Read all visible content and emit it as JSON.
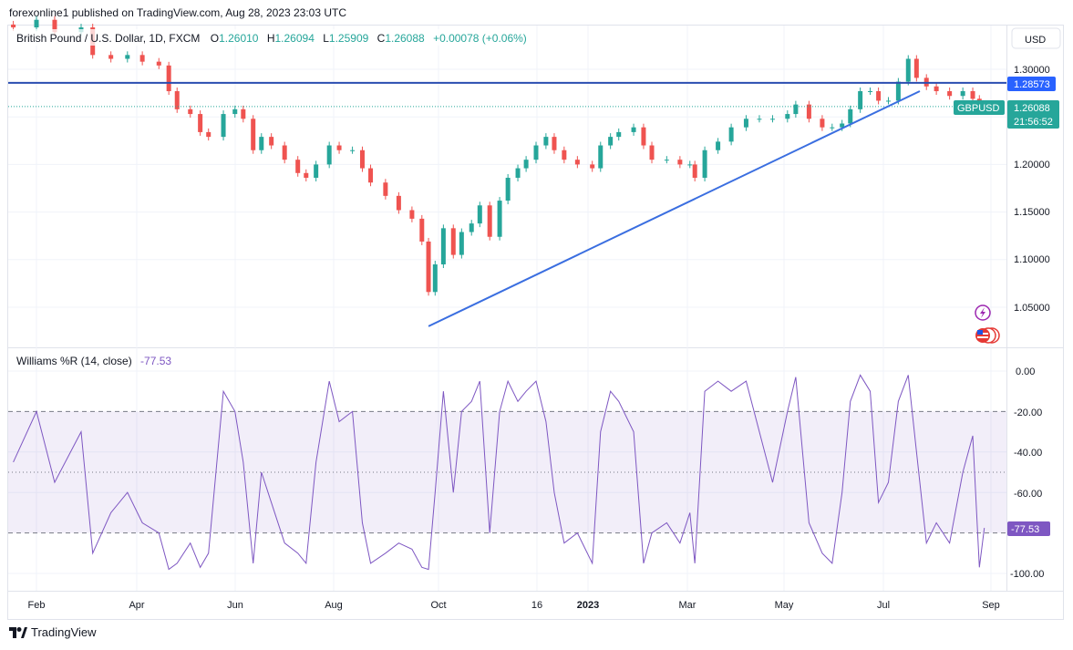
{
  "header": {
    "published": "forexonline1 published on TradingView.com, Aug 28, 2023 23:03 UTC"
  },
  "legend": {
    "symbol": "British Pound / U.S. Dollar, 1D, FXCM",
    "o_label": "O",
    "o": "1.26010",
    "h_label": "H",
    "h": "1.26094",
    "l_label": "L",
    "l": "1.25909",
    "c_label": "C",
    "c": "1.26088",
    "change": "+0.00078 (+0.06%)"
  },
  "price_axis": {
    "currency": "USD",
    "ticks": [
      "1.30000",
      "1.20000",
      "1.15000",
      "1.10000",
      "1.05000"
    ],
    "hline_label": "1.28573",
    "last_price": "1.26088",
    "countdown": "21:56:52",
    "symbol_tag": "GBPUSD"
  },
  "indicator": {
    "title": "Williams %R (14, close)",
    "value": "-77.53",
    "ticks": [
      "0.00",
      "-20.00",
      "-40.00",
      "-60.00",
      "-100.00"
    ],
    "value_tag": "-77.53"
  },
  "time_axis": {
    "labels": [
      "Feb",
      "Apr",
      "Jun",
      "Aug",
      "Oct",
      "16",
      "2023",
      "Mar",
      "May",
      "Jul",
      "Sep"
    ]
  },
  "footer": {
    "brand": "TradingView"
  },
  "colors": {
    "up": "#26a69a",
    "down": "#ef5350",
    "line": "#2962ff",
    "wr": "#7e57c2",
    "trend": "#3a6ee0"
  },
  "icons": [
    "lightning-icon",
    "us-flag-icon",
    "tradingview-logo-icon"
  ],
  "chart_data": {
    "type": "candlestick",
    "title": "British Pound / U.S. Dollar, 1D, FXCM",
    "ylim": [
      1.02,
      1.355
    ],
    "horizontal_line": 1.28573,
    "trend_line": [
      {
        "date": "2022-09-26",
        "price": 1.03
      },
      {
        "date": "2023-07-20",
        "price": 1.277
      }
    ],
    "indicator_ylim": [
      -105,
      5
    ],
    "indicator_levels": [
      -20,
      -50,
      -80
    ],
    "points": [
      {
        "date": "2022-01-18",
        "close": 1.344,
        "wr": -45
      },
      {
        "date": "2022-02-01",
        "close": 1.352,
        "wr": -20
      },
      {
        "date": "2022-02-12",
        "close": 1.339,
        "wr": -55
      },
      {
        "date": "2022-02-28",
        "close": 1.344,
        "wr": -30
      },
      {
        "date": "2022-03-07",
        "close": 1.315,
        "wr": -90
      },
      {
        "date": "2022-03-18",
        "close": 1.311,
        "wr": -70
      },
      {
        "date": "2022-03-28",
        "close": 1.315,
        "wr": -60
      },
      {
        "date": "2022-04-06",
        "close": 1.308,
        "wr": -75
      },
      {
        "date": "2022-04-16",
        "close": 1.304,
        "wr": -80
      },
      {
        "date": "2022-04-22",
        "close": 1.277,
        "wr": -98
      },
      {
        "date": "2022-04-27",
        "close": 1.258,
        "wr": -95
      },
      {
        "date": "2022-05-05",
        "close": 1.253,
        "wr": -85
      },
      {
        "date": "2022-05-11",
        "close": 1.234,
        "wr": -97
      },
      {
        "date": "2022-05-16",
        "close": 1.229,
        "wr": -90
      },
      {
        "date": "2022-05-25",
        "close": 1.253,
        "wr": -10
      },
      {
        "date": "2022-06-01",
        "close": 1.258,
        "wr": -20
      },
      {
        "date": "2022-06-06",
        "close": 1.248,
        "wr": -45
      },
      {
        "date": "2022-06-12",
        "close": 1.215,
        "wr": -95
      },
      {
        "date": "2022-06-17",
        "close": 1.229,
        "wr": -50
      },
      {
        "date": "2022-06-23",
        "close": 1.22,
        "wr": -65
      },
      {
        "date": "2022-07-01",
        "close": 1.205,
        "wr": -85
      },
      {
        "date": "2022-07-09",
        "close": 1.191,
        "wr": -90
      },
      {
        "date": "2022-07-14",
        "close": 1.186,
        "wr": -95
      },
      {
        "date": "2022-07-20",
        "close": 1.2,
        "wr": -45
      },
      {
        "date": "2022-07-28",
        "close": 1.22,
        "wr": -5
      },
      {
        "date": "2022-08-03",
        "close": 1.215,
        "wr": -25
      },
      {
        "date": "2022-08-11",
        "close": 1.215,
        "wr": -20
      },
      {
        "date": "2022-08-17",
        "close": 1.196,
        "wr": -75
      },
      {
        "date": "2022-08-22",
        "close": 1.181,
        "wr": -95
      },
      {
        "date": "2022-08-31",
        "close": 1.167,
        "wr": -90
      },
      {
        "date": "2022-09-08",
        "close": 1.152,
        "wr": -85
      },
      {
        "date": "2022-09-16",
        "close": 1.143,
        "wr": -88
      },
      {
        "date": "2022-09-22",
        "close": 1.119,
        "wr": -97
      },
      {
        "date": "2022-09-26",
        "close": 1.066,
        "wr": -98
      },
      {
        "date": "2022-09-30",
        "close": 1.095,
        "wr": -60
      },
      {
        "date": "2022-10-05",
        "close": 1.133,
        "wr": -10
      },
      {
        "date": "2022-10-11",
        "close": 1.105,
        "wr": -60
      },
      {
        "date": "2022-10-16",
        "close": 1.129,
        "wr": -20
      },
      {
        "date": "2022-10-22",
        "close": 1.138,
        "wr": -15
      },
      {
        "date": "2022-10-27",
        "close": 1.157,
        "wr": -5
      },
      {
        "date": "2022-11-02",
        "close": 1.124,
        "wr": -80
      },
      {
        "date": "2022-11-08",
        "close": 1.162,
        "wr": -20
      },
      {
        "date": "2022-11-13",
        "close": 1.186,
        "wr": -5
      },
      {
        "date": "2022-11-19",
        "close": 1.196,
        "wr": -15
      },
      {
        "date": "2022-11-24",
        "close": 1.205,
        "wr": -10
      },
      {
        "date": "2022-11-30",
        "close": 1.22,
        "wr": -5
      },
      {
        "date": "2022-12-06",
        "close": 1.229,
        "wr": -25
      },
      {
        "date": "2022-12-11",
        "close": 1.215,
        "wr": -60
      },
      {
        "date": "2022-12-17",
        "close": 1.205,
        "wr": -85
      },
      {
        "date": "2022-12-25",
        "close": 1.2,
        "wr": -80
      },
      {
        "date": "2023-01-03",
        "close": 1.196,
        "wr": -95
      },
      {
        "date": "2023-01-08",
        "close": 1.22,
        "wr": -30
      },
      {
        "date": "2023-01-14",
        "close": 1.229,
        "wr": -10
      },
      {
        "date": "2023-01-19",
        "close": 1.234,
        "wr": -15
      },
      {
        "date": "2023-01-28",
        "close": 1.239,
        "wr": -30
      },
      {
        "date": "2023-02-03",
        "close": 1.22,
        "wr": -95
      },
      {
        "date": "2023-02-08",
        "close": 1.205,
        "wr": -80
      },
      {
        "date": "2023-02-17",
        "close": 1.205,
        "wr": -75
      },
      {
        "date": "2023-02-25",
        "close": 1.2,
        "wr": -85
      },
      {
        "date": "2023-03-03",
        "close": 1.2,
        "wr": -70
      },
      {
        "date": "2023-03-06",
        "close": 1.186,
        "wr": -95
      },
      {
        "date": "2023-03-12",
        "close": 1.215,
        "wr": -10
      },
      {
        "date": "2023-03-20",
        "close": 1.224,
        "wr": -5
      },
      {
        "date": "2023-03-28",
        "close": 1.239,
        "wr": -10
      },
      {
        "date": "2023-04-06",
        "close": 1.248,
        "wr": -5
      },
      {
        "date": "2023-04-14",
        "close": 1.248,
        "wr": -30
      },
      {
        "date": "2023-04-22",
        "close": 1.248,
        "wr": -55
      },
      {
        "date": "2023-05-01",
        "close": 1.253,
        "wr": -20
      },
      {
        "date": "2023-05-06",
        "close": 1.263,
        "wr": -3
      },
      {
        "date": "2023-05-14",
        "close": 1.248,
        "wr": -75
      },
      {
        "date": "2023-05-22",
        "close": 1.239,
        "wr": -90
      },
      {
        "date": "2023-05-28",
        "close": 1.239,
        "wr": -95
      },
      {
        "date": "2023-06-03",
        "close": 1.243,
        "wr": -60
      },
      {
        "date": "2023-06-08",
        "close": 1.258,
        "wr": -15
      },
      {
        "date": "2023-06-14",
        "close": 1.277,
        "wr": -2
      },
      {
        "date": "2023-06-20",
        "close": 1.277,
        "wr": -10
      },
      {
        "date": "2023-06-25",
        "close": 1.267,
        "wr": -65
      },
      {
        "date": "2023-07-01",
        "close": 1.267,
        "wr": -55
      },
      {
        "date": "2023-07-07",
        "close": 1.287,
        "wr": -15
      },
      {
        "date": "2023-07-13",
        "close": 1.311,
        "wr": -2
      },
      {
        "date": "2023-07-18",
        "close": 1.291,
        "wr": -40
      },
      {
        "date": "2023-07-24",
        "close": 1.282,
        "wr": -85
      },
      {
        "date": "2023-07-30",
        "close": 1.277,
        "wr": -75
      },
      {
        "date": "2023-08-07",
        "close": 1.272,
        "wr": -85
      },
      {
        "date": "2023-08-15",
        "close": 1.277,
        "wr": -50
      },
      {
        "date": "2023-08-21",
        "close": 1.269,
        "wr": -32
      },
      {
        "date": "2023-08-25",
        "close": 1.262,
        "wr": -97
      },
      {
        "date": "2023-08-28",
        "close": 1.26088,
        "wr": -77.53
      }
    ]
  }
}
